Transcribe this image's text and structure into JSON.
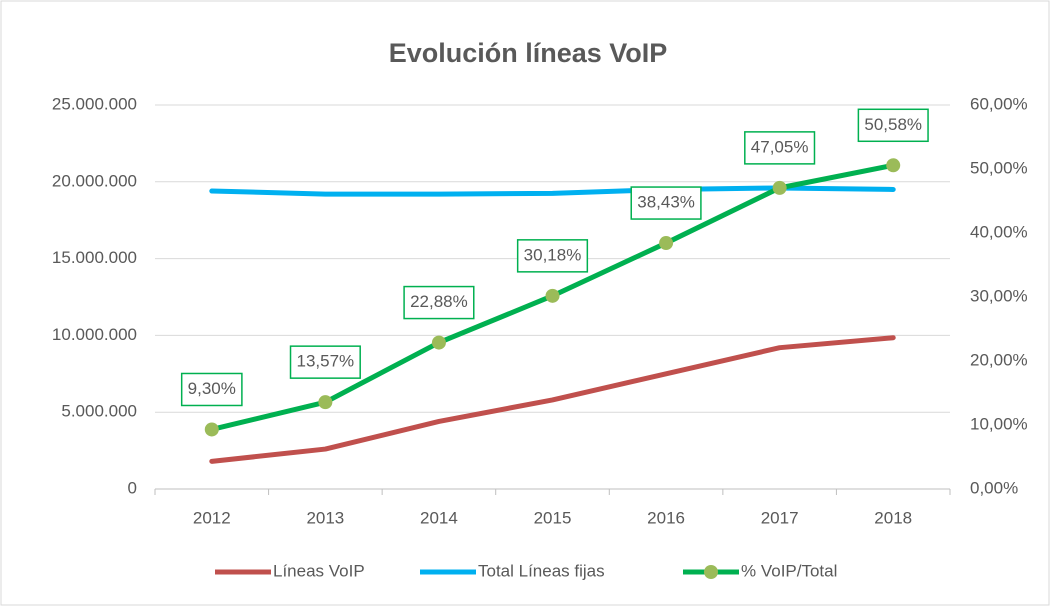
{
  "chart_data": {
    "type": "line",
    "title": "Evolución líneas VoIP",
    "categories": [
      "2012",
      "2013",
      "2014",
      "2015",
      "2016",
      "2017",
      "2018"
    ],
    "series": [
      {
        "name": "Líneas VoIP",
        "color": "#c0504d",
        "values": [
          1800000,
          2600000,
          4400000,
          5800000,
          7500000,
          9200000,
          9850000
        ]
      },
      {
        "name": "Total Líneas fijas",
        "color": "#00b0f0",
        "values": [
          19400000,
          19200000,
          19200000,
          19250000,
          19500000,
          19600000,
          19500000
        ]
      },
      {
        "name": "% VoIP/Total",
        "color": "#00b050",
        "marker_color": "#9bbb59",
        "axis": "y2",
        "values": [
          9.3,
          13.57,
          22.88,
          30.18,
          38.43,
          47.05,
          50.58
        ],
        "value_labels": [
          "9,30%",
          "13,57%",
          "22,88%",
          "30,18%",
          "38,43%",
          "47,05%",
          "50,58%"
        ]
      }
    ],
    "ylim": [
      0,
      25000000
    ],
    "yticks": [
      0,
      {
        "value": 5000000,
        "label": "5.000.000"
      },
      {
        "value": 10000000,
        "label": "10.000.000"
      },
      {
        "value": 15000000,
        "label": "15.000.000"
      },
      {
        "value": 20000000,
        "label": "20.000.000"
      },
      {
        "value": 25000000,
        "label": "25.000.000"
      }
    ],
    "y2lim": [
      0,
      60
    ],
    "y2ticks": [
      {
        "value": 0,
        "label": "0,00%"
      },
      {
        "value": 10,
        "label": "10,00%"
      },
      {
        "value": 20,
        "label": "20,00%"
      },
      {
        "value": 30,
        "label": "30,00%"
      },
      {
        "value": 40,
        "label": "40,00%"
      },
      {
        "value": 50,
        "label": "50,00%"
      },
      {
        "value": 60,
        "label": "60,00%"
      }
    ],
    "grid": true,
    "legend": "bottom"
  }
}
